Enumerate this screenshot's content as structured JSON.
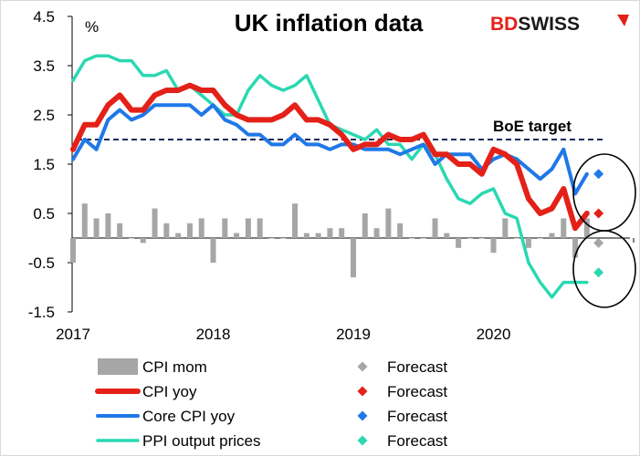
{
  "chart_data": {
    "type": "bar",
    "title": "UK inflation data",
    "ylabel": "%",
    "ylim": [
      -1.5,
      4.5
    ],
    "yticks": [
      "4.5",
      "3.5",
      "2.5",
      "1.5",
      "0.5",
      "-0.5",
      "-1.5"
    ],
    "xticks": [
      "2017",
      "2018",
      "2019",
      "2020"
    ],
    "grid": false,
    "legend_position": "bottom",
    "months": [
      "2017-01",
      "2017-02",
      "2017-03",
      "2017-04",
      "2017-05",
      "2017-06",
      "2017-07",
      "2017-08",
      "2017-09",
      "2017-10",
      "2017-11",
      "2017-12",
      "2018-01",
      "2018-02",
      "2018-03",
      "2018-04",
      "2018-05",
      "2018-06",
      "2018-07",
      "2018-08",
      "2018-09",
      "2018-10",
      "2018-11",
      "2018-12",
      "2019-01",
      "2019-02",
      "2019-03",
      "2019-04",
      "2019-05",
      "2019-06",
      "2019-07",
      "2019-08",
      "2019-09",
      "2019-10",
      "2019-11",
      "2019-12",
      "2020-01",
      "2020-02",
      "2020-03",
      "2020-04",
      "2020-05",
      "2020-06",
      "2020-07",
      "2020-08",
      "2020-09"
    ],
    "forecast_month": "2020-10",
    "series": [
      {
        "name": "CPI mom",
        "kind": "bar",
        "color": "#a6a6a6",
        "forecast": -0.1,
        "values": [
          -0.5,
          0.7,
          0.4,
          0.5,
          0.3,
          0.0,
          -0.1,
          0.6,
          0.3,
          0.1,
          0.3,
          0.4,
          -0.5,
          0.4,
          0.1,
          0.4,
          0.4,
          0.0,
          0.0,
          0.7,
          0.1,
          0.1,
          0.2,
          0.2,
          -0.8,
          0.5,
          0.2,
          0.6,
          0.3,
          0.0,
          0.0,
          0.4,
          0.1,
          -0.2,
          0.0,
          0.0,
          -0.3,
          0.4,
          0.0,
          -0.2,
          0.0,
          0.1,
          0.4,
          -0.4,
          0.4
        ]
      },
      {
        "name": "CPI yoy",
        "kind": "line",
        "color": "#e32118",
        "forecast": 0.5,
        "values": [
          1.8,
          2.3,
          2.3,
          2.7,
          2.9,
          2.6,
          2.6,
          2.9,
          3.0,
          3.0,
          3.1,
          3.0,
          3.0,
          2.7,
          2.5,
          2.4,
          2.4,
          2.4,
          2.5,
          2.7,
          2.4,
          2.4,
          2.3,
          2.1,
          1.8,
          1.9,
          1.9,
          2.1,
          2.0,
          2.0,
          2.1,
          1.7,
          1.7,
          1.5,
          1.5,
          1.3,
          1.8,
          1.7,
          1.5,
          0.8,
          0.5,
          0.6,
          1.0,
          0.2,
          0.5
        ]
      },
      {
        "name": "Core CPI yoy",
        "kind": "line",
        "color": "#1f78e8",
        "forecast": 1.3,
        "values": [
          1.6,
          2.0,
          1.8,
          2.4,
          2.6,
          2.4,
          2.5,
          2.7,
          2.7,
          2.7,
          2.7,
          2.5,
          2.7,
          2.4,
          2.3,
          2.1,
          2.1,
          1.9,
          1.9,
          2.1,
          1.9,
          1.9,
          1.8,
          1.9,
          1.9,
          1.8,
          1.8,
          1.8,
          1.7,
          1.8,
          1.9,
          1.5,
          1.7,
          1.7,
          1.7,
          1.4,
          1.6,
          1.7,
          1.6,
          1.4,
          1.2,
          1.4,
          1.8,
          0.9,
          1.3
        ]
      },
      {
        "name": "PPI output prices",
        "kind": "line",
        "color": "#2ad8b2",
        "forecast": -0.7,
        "values": [
          3.2,
          3.6,
          3.7,
          3.7,
          3.6,
          3.6,
          3.3,
          3.3,
          3.4,
          3.0,
          3.1,
          2.9,
          2.7,
          2.5,
          2.5,
          3.0,
          3.3,
          3.1,
          3.0,
          3.1,
          3.3,
          2.8,
          2.3,
          2.2,
          2.1,
          2.0,
          2.2,
          1.9,
          1.9,
          1.6,
          1.9,
          1.7,
          1.2,
          0.8,
          0.7,
          0.9,
          1.0,
          0.5,
          0.4,
          -0.5,
          -0.9,
          -1.2,
          -0.9,
          -0.9,
          -0.9
        ]
      }
    ],
    "annotation": {
      "label": "BoE  target",
      "value": 2.0
    },
    "forecast_label": "Forecast"
  },
  "brand": {
    "part1": "BD",
    "part2": "SWISS",
    "color1": "#e32118",
    "color2": "#1a1a1a"
  }
}
